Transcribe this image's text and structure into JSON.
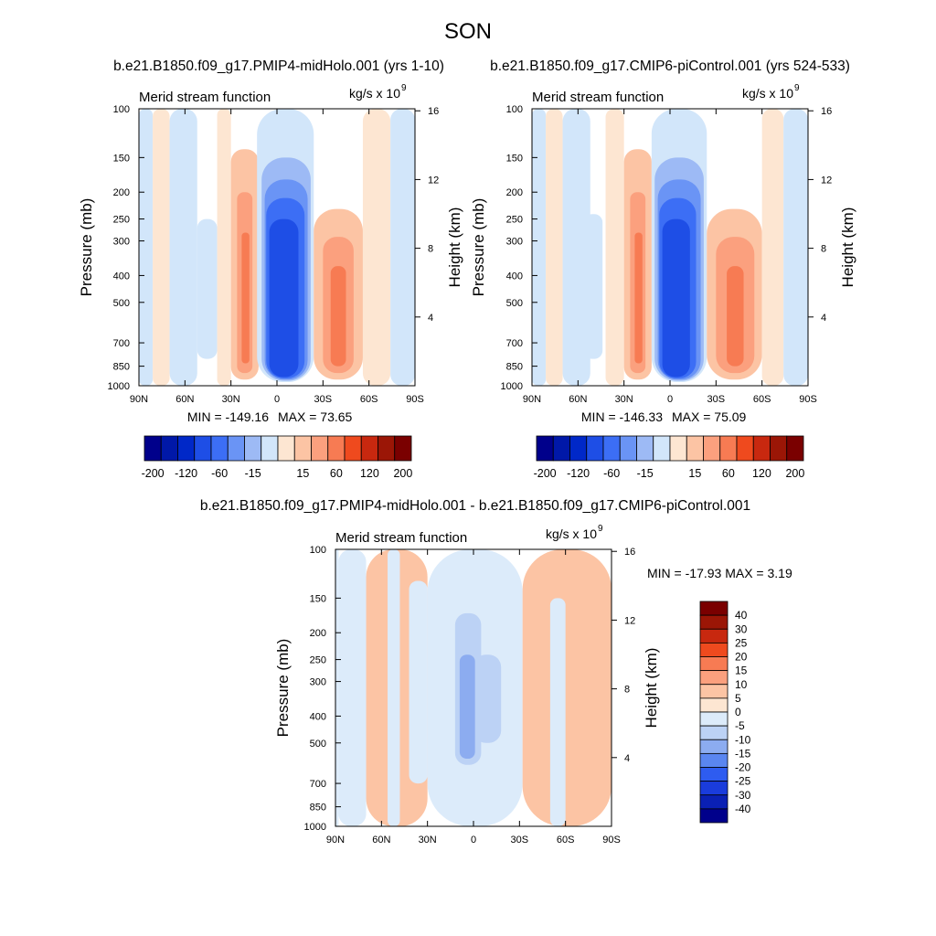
{
  "figure": {
    "title": "SON"
  },
  "colors": {
    "panel_scale": [
      "#00008b",
      "#0018a8",
      "#0028c8",
      "#1e4ee6",
      "#3c6ef5",
      "#6a94f5",
      "#9dbaf5",
      "#d2e6fa",
      "#fde6d2",
      "#fcc4a4",
      "#fba07e",
      "#f77b53",
      "#ef4a1e",
      "#c8280f",
      "#9b1606",
      "#7a0000"
    ],
    "diff_scale": [
      "#00008b",
      "#0a20b4",
      "#1a3cdc",
      "#2e5cf0",
      "#5a86f0",
      "#8cacf0",
      "#bcd2f5",
      "#dcebfa",
      "#fde6d2",
      "#fcc4a4",
      "#fba07e",
      "#f77b53",
      "#ef4a1e",
      "#c8280f",
      "#9b1606",
      "#7a0000"
    ]
  },
  "chart_data": [
    {
      "type": "heatmap",
      "title": "b.e21.B1850.f09_g17.PMIP4-midHolo.001 (yrs 1-10)",
      "left_label": "Merid stream function",
      "right_label": "kg/s x 10",
      "right_label_exp": "9",
      "ylabel": "Pressure (mb)",
      "ylabel_right": "Height (km)",
      "xticks": [
        "90N",
        "60N",
        "30N",
        "0",
        "30S",
        "60S",
        "90S"
      ],
      "xlim": [
        90,
        -90
      ],
      "yticks": [
        100,
        150,
        200,
        250,
        300,
        400,
        500,
        700,
        850,
        1000
      ],
      "ylim": [
        1000,
        100
      ],
      "yticks_right": [
        4,
        8,
        12,
        16
      ],
      "min_label": "MIN = -149.16",
      "max_label": "MAX =  73.65",
      "min": -149.16,
      "max": 73.65,
      "cells": [
        {
          "lat": [
            90,
            81
          ],
          "p": [
            1000,
            100
          ],
          "v": -5
        },
        {
          "lat": [
            81,
            70
          ],
          "p": [
            1000,
            100
          ],
          "v": 5
        },
        {
          "lat": [
            70,
            52
          ],
          "p": [
            1000,
            100
          ],
          "v": -5
        },
        {
          "lat": [
            52,
            39
          ],
          "p": [
            800,
            250
          ],
          "v": -15
        },
        {
          "lat": [
            39,
            30
          ],
          "p": [
            1000,
            100
          ],
          "v": 5
        },
        {
          "lat": [
            30,
            12
          ],
          "p": [
            950,
            140
          ],
          "v": 15
        },
        {
          "lat": [
            26,
            16
          ],
          "p": [
            900,
            200
          ],
          "v": 30
        },
        {
          "lat": [
            23,
            18
          ],
          "p": [
            830,
            280
          ],
          "v": 60
        },
        {
          "lat": [
            13,
            -24
          ],
          "p": [
            970,
            100
          ],
          "v": -15
        },
        {
          "lat": [
            10,
            -22
          ],
          "p": [
            960,
            150
          ],
          "v": -30
        },
        {
          "lat": [
            8,
            -20
          ],
          "p": [
            950,
            180
          ],
          "v": -60
        },
        {
          "lat": [
            7,
            -18
          ],
          "p": [
            940,
            210
          ],
          "v": -90
        },
        {
          "lat": [
            5,
            -14
          ],
          "p": [
            930,
            250
          ],
          "v": -120
        },
        {
          "lat": [
            -24,
            -56
          ],
          "p": [
            950,
            230
          ],
          "v": 15
        },
        {
          "lat": [
            -30,
            -50
          ],
          "p": [
            900,
            290
          ],
          "v": 30
        },
        {
          "lat": [
            -35,
            -45
          ],
          "p": [
            850,
            370
          ],
          "v": 60
        },
        {
          "lat": [
            -56,
            -74
          ],
          "p": [
            1000,
            100
          ],
          "v": 5
        },
        {
          "lat": [
            -74,
            -90
          ],
          "p": [
            1000,
            100
          ],
          "v": -5
        }
      ],
      "colorbar_labels": [
        "-200",
        "-120",
        "-60",
        "-15",
        "15",
        "60",
        "120",
        "200"
      ]
    },
    {
      "type": "heatmap",
      "title": "b.e21.B1850.f09_g17.CMIP6-piControl.001 (yrs 524-533)",
      "left_label": "Merid stream function",
      "right_label": "kg/s x 10",
      "right_label_exp": "9",
      "ylabel": "Pressure (mb)",
      "ylabel_right": "Height (km)",
      "xticks": [
        "90N",
        "60N",
        "30N",
        "0",
        "30S",
        "60S",
        "90S"
      ],
      "xlim": [
        90,
        -90
      ],
      "yticks": [
        100,
        150,
        200,
        250,
        300,
        400,
        500,
        700,
        850,
        1000
      ],
      "ylim": [
        1000,
        100
      ],
      "yticks_right": [
        4,
        8,
        12,
        16
      ],
      "min_label": "MIN = -146.33",
      "max_label": "MAX =  75.09",
      "min": -146.33,
      "max": 75.09,
      "cells": [
        {
          "lat": [
            90,
            81
          ],
          "p": [
            1000,
            100
          ],
          "v": -5
        },
        {
          "lat": [
            81,
            70
          ],
          "p": [
            1000,
            100
          ],
          "v": 5
        },
        {
          "lat": [
            70,
            52
          ],
          "p": [
            1000,
            100
          ],
          "v": -5
        },
        {
          "lat": [
            56,
            44
          ],
          "p": [
            800,
            240
          ],
          "v": -15
        },
        {
          "lat": [
            42,
            30
          ],
          "p": [
            1000,
            100
          ],
          "v": 5
        },
        {
          "lat": [
            30,
            12
          ],
          "p": [
            950,
            140
          ],
          "v": 15
        },
        {
          "lat": [
            26,
            16
          ],
          "p": [
            900,
            200
          ],
          "v": 30
        },
        {
          "lat": [
            23,
            18
          ],
          "p": [
            830,
            280
          ],
          "v": 60
        },
        {
          "lat": [
            12,
            -24
          ],
          "p": [
            970,
            100
          ],
          "v": -15
        },
        {
          "lat": [
            10,
            -22
          ],
          "p": [
            960,
            150
          ],
          "v": -30
        },
        {
          "lat": [
            8,
            -20
          ],
          "p": [
            950,
            180
          ],
          "v": -60
        },
        {
          "lat": [
            7,
            -17
          ],
          "p": [
            940,
            210
          ],
          "v": -90
        },
        {
          "lat": [
            5,
            -13
          ],
          "p": [
            930,
            250
          ],
          "v": -120
        },
        {
          "lat": [
            -24,
            -60
          ],
          "p": [
            950,
            230
          ],
          "v": 15
        },
        {
          "lat": [
            -30,
            -55
          ],
          "p": [
            900,
            290
          ],
          "v": 30
        },
        {
          "lat": [
            -37,
            -48
          ],
          "p": [
            850,
            370
          ],
          "v": 60
        },
        {
          "lat": [
            -60,
            -74
          ],
          "p": [
            1000,
            100
          ],
          "v": 5
        },
        {
          "lat": [
            -74,
            -90
          ],
          "p": [
            1000,
            100
          ],
          "v": -5
        }
      ],
      "colorbar_labels": [
        "-200",
        "-120",
        "-60",
        "-15",
        "15",
        "60",
        "120",
        "200"
      ]
    },
    {
      "type": "heatmap",
      "title": "b.e21.B1850.f09_g17.PMIP4-midHolo.001 - b.e21.B1850.f09_g17.CMIP6-piControl.001",
      "left_label": "Merid stream function",
      "right_label": "kg/s x 10",
      "right_label_exp": "9",
      "ylabel": "Pressure (mb)",
      "ylabel_right": "Height (km)",
      "xticks": [
        "90N",
        "60N",
        "30N",
        "0",
        "30S",
        "60S",
        "90S"
      ],
      "xlim": [
        90,
        -90
      ],
      "yticks": [
        100,
        150,
        200,
        250,
        300,
        400,
        500,
        700,
        850,
        1000
      ],
      "ylim": [
        1000,
        100
      ],
      "yticks_right": [
        4,
        8,
        12,
        16
      ],
      "minmax_label": "MIN = -17.93  MAX =   3.19",
      "min": -17.93,
      "max": 3.19,
      "cells": [
        {
          "lat": [
            90,
            88
          ],
          "p": [
            1000,
            100
          ],
          "v": -5
        },
        {
          "lat": [
            88,
            70
          ],
          "p": [
            1000,
            100
          ],
          "v": -5
        },
        {
          "lat": [
            70,
            30
          ],
          "p": [
            1000,
            100
          ],
          "v": 5
        },
        {
          "lat": [
            56,
            48
          ],
          "p": [
            1000,
            100
          ],
          "v": -5
        },
        {
          "lat": [
            42,
            30
          ],
          "p": [
            700,
            130
          ],
          "v": -5
        },
        {
          "lat": [
            30,
            -32
          ],
          "p": [
            1000,
            100
          ],
          "v": -5
        },
        {
          "lat": [
            12,
            -5
          ],
          "p": [
            600,
            170
          ],
          "v": -10
        },
        {
          "lat": [
            0,
            -18
          ],
          "p": [
            500,
            240
          ],
          "v": -10
        },
        {
          "lat": [
            9,
            -1
          ],
          "p": [
            570,
            240
          ],
          "v": -15
        },
        {
          "lat": [
            -32,
            -90
          ],
          "p": [
            1000,
            100
          ],
          "v": 5
        },
        {
          "lat": [
            -50,
            -60
          ],
          "p": [
            1000,
            150
          ],
          "v": -5
        }
      ],
      "colorbar_labels": [
        "40",
        "30",
        "25",
        "20",
        "15",
        "10",
        "5",
        "0",
        "-5",
        "-10",
        "-15",
        "-20",
        "-25",
        "-30",
        "-40"
      ]
    }
  ]
}
